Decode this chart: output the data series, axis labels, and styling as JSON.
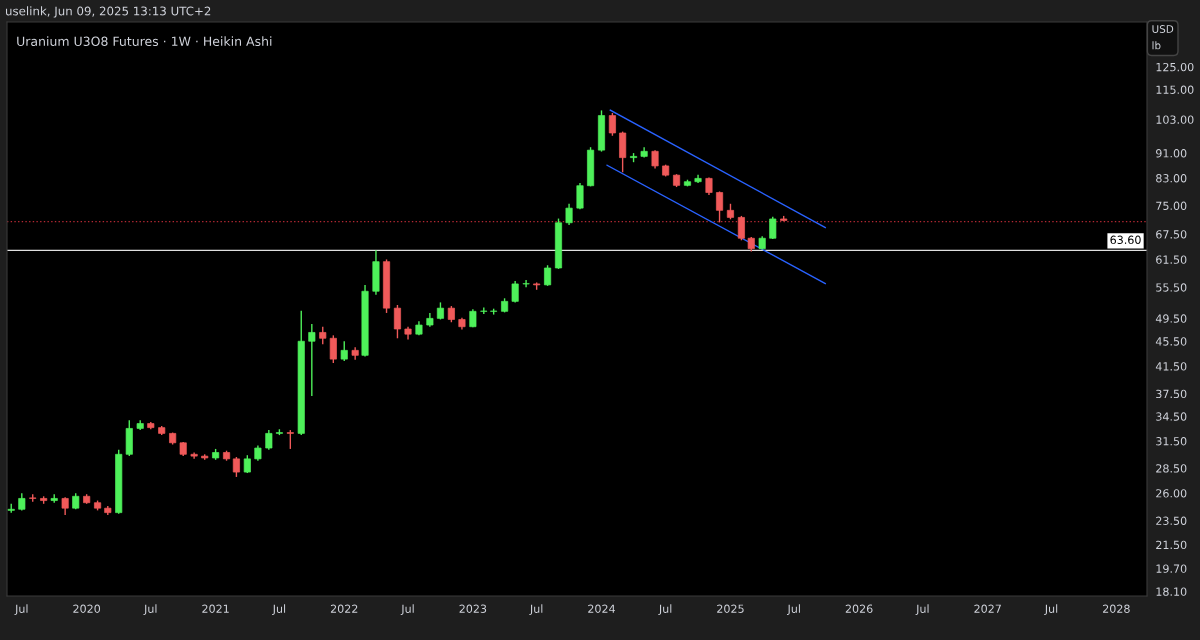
{
  "chart_data": {
    "type": "candlestick",
    "title": "Uranium U3O8 Futures · 1W · Heikin Ashi",
    "ylabel": "USD\nlb",
    "annotations": [
      "uselink, Jun 09, 2025 13:13 UTC+2"
    ],
    "log": "y",
    "grid": false,
    "legend": false,
    "x": [
      "2019-06",
      "2019-07",
      "2019-08",
      "2019-09",
      "2019-10",
      "2019-11",
      "2019-12",
      "2020-01",
      "2020-02",
      "2020-03",
      "2020-04",
      "2020-05",
      "2020-06",
      "2020-07",
      "2020-08",
      "2020-09",
      "2020-10",
      "2020-11",
      "2020-12",
      "2021-01",
      "2021-02",
      "2021-03",
      "2021-04",
      "2021-05",
      "2021-06",
      "2021-07",
      "2021-08",
      "2021-09",
      "2021-10",
      "2021-11",
      "2021-12",
      "2022-01",
      "2022-02",
      "2022-03",
      "2022-04",
      "2022-05",
      "2022-06",
      "2022-07",
      "2022-08",
      "2022-09",
      "2022-10",
      "2022-11",
      "2022-12",
      "2023-01",
      "2023-02",
      "2023-03",
      "2023-04",
      "2023-05",
      "2023-06",
      "2023-07",
      "2023-08",
      "2023-09",
      "2023-10",
      "2023-11",
      "2023-12",
      "2024-01",
      "2024-02",
      "2024-03",
      "2024-04",
      "2024-05",
      "2024-06",
      "2024-07",
      "2024-08",
      "2024-09",
      "2024-10",
      "2024-11",
      "2024-12",
      "2025-01",
      "2025-02",
      "2025-03",
      "2025-04",
      "2025-05",
      "2025-06"
    ],
    "ohlc": [
      [
        24.4,
        25.0,
        24.2,
        24.5
      ],
      [
        24.5,
        26.0,
        24.4,
        25.5
      ],
      [
        25.5,
        25.9,
        25.2,
        25.5
      ],
      [
        25.5,
        25.7,
        25.0,
        25.3
      ],
      [
        25.3,
        25.9,
        25.1,
        25.5
      ],
      [
        25.5,
        25.6,
        24.0,
        24.6
      ],
      [
        24.6,
        26.0,
        24.5,
        25.7
      ],
      [
        25.7,
        25.9,
        25.0,
        25.1
      ],
      [
        25.1,
        25.3,
        24.4,
        24.6
      ],
      [
        24.6,
        24.8,
        24.0,
        24.2
      ],
      [
        24.2,
        30.5,
        24.1,
        30.0
      ],
      [
        30.0,
        34.0,
        29.8,
        33.0
      ],
      [
        33.0,
        34.0,
        32.8,
        33.6
      ],
      [
        33.6,
        33.8,
        32.9,
        33.1
      ],
      [
        33.1,
        33.3,
        32.2,
        32.4
      ],
      [
        32.4,
        32.5,
        31.1,
        31.3
      ],
      [
        31.3,
        31.4,
        29.8,
        30.0
      ],
      [
        30.0,
        30.2,
        29.5,
        29.8
      ],
      [
        29.8,
        30.0,
        29.4,
        29.6
      ],
      [
        29.6,
        30.6,
        29.4,
        30.2
      ],
      [
        30.2,
        30.4,
        29.3,
        29.5
      ],
      [
        29.5,
        29.7,
        27.6,
        28.1
      ],
      [
        28.1,
        29.9,
        28.0,
        29.5
      ],
      [
        29.5,
        31.0,
        29.3,
        30.7
      ],
      [
        30.7,
        32.8,
        30.5,
        32.4
      ],
      [
        32.4,
        32.9,
        32.2,
        32.5
      ],
      [
        32.5,
        32.8,
        30.6,
        32.4
      ],
      [
        32.4,
        50.9,
        32.2,
        45.5
      ],
      [
        45.5,
        48.5,
        37.2,
        47.0
      ],
      [
        47.0,
        48.0,
        45.0,
        46.0
      ],
      [
        46.0,
        46.5,
        42.0,
        42.6
      ],
      [
        42.6,
        45.5,
        42.3,
        44.0
      ],
      [
        44.0,
        44.5,
        42.5,
        43.2
      ],
      [
        43.2,
        56.0,
        43.0,
        54.7
      ],
      [
        54.7,
        63.6,
        54.0,
        61.0
      ],
      [
        61.0,
        61.5,
        50.5,
        51.4
      ],
      [
        51.4,
        52.0,
        46.0,
        47.6
      ],
      [
        47.6,
        48.0,
        45.8,
        46.7
      ],
      [
        46.7,
        49.0,
        46.5,
        48.3
      ],
      [
        48.3,
        50.5,
        48.0,
        49.5
      ],
      [
        49.5,
        52.5,
        49.3,
        51.4
      ],
      [
        51.4,
        51.8,
        48.8,
        49.3
      ],
      [
        49.3,
        49.6,
        47.5,
        48.0
      ],
      [
        48.0,
        51.2,
        47.9,
        50.8
      ],
      [
        50.8,
        51.5,
        50.3,
        50.8
      ],
      [
        50.8,
        51.3,
        50.2,
        50.8
      ],
      [
        50.8,
        53.3,
        50.6,
        52.7
      ],
      [
        52.7,
        56.8,
        52.5,
        56.2
      ],
      [
        56.2,
        57.0,
        55.5,
        56.2
      ],
      [
        56.2,
        56.5,
        55.0,
        56.0
      ],
      [
        56.0,
        60.2,
        55.8,
        59.6
      ],
      [
        59.6,
        71.5,
        59.4,
        70.4
      ],
      [
        70.4,
        75.5,
        69.8,
        74.3
      ],
      [
        74.3,
        81.5,
        74.0,
        80.7
      ],
      [
        80.7,
        93.0,
        80.5,
        92.0
      ],
      [
        92.0,
        106.5,
        91.5,
        104.5
      ],
      [
        104.5,
        105.5,
        97.0,
        98.0
      ],
      [
        98.0,
        98.5,
        84.8,
        89.5
      ],
      [
        89.5,
        91.0,
        88.0,
        89.9
      ],
      [
        89.9,
        93.0,
        89.5,
        91.6
      ],
      [
        91.6,
        92.0,
        86.0,
        86.8
      ],
      [
        86.8,
        87.2,
        83.5,
        83.9
      ],
      [
        83.9,
        84.2,
        80.3,
        80.8
      ],
      [
        80.8,
        82.5,
        80.5,
        81.9
      ],
      [
        81.9,
        84.0,
        81.5,
        82.9
      ],
      [
        82.9,
        83.2,
        78.0,
        78.7
      ],
      [
        78.7,
        79.0,
        70.5,
        73.7
      ],
      [
        73.7,
        75.5,
        71.3,
        71.8
      ],
      [
        71.8,
        72.2,
        66.0,
        66.5
      ],
      [
        66.5,
        66.8,
        63.3,
        64.0
      ],
      [
        64.0,
        67.0,
        63.8,
        66.5
      ],
      [
        66.5,
        72.0,
        66.3,
        71.4
      ],
      [
        71.4,
        72.2,
        70.8,
        71.0
      ]
    ],
    "colors": [
      "#4ef05a",
      "#4ef05a",
      "#f05a5a",
      "#f05a5a",
      "#4ef05a",
      "#f05a5a",
      "#4ef05a",
      "#f05a5a",
      "#f05a5a",
      "#f05a5a",
      "#4ef05a",
      "#4ef05a",
      "#4ef05a",
      "#f05a5a",
      "#f05a5a",
      "#f05a5a",
      "#f05a5a",
      "#f05a5a",
      "#f05a5a",
      "#4ef05a",
      "#f05a5a",
      "#f05a5a",
      "#4ef05a",
      "#4ef05a",
      "#4ef05a",
      "#4ef05a",
      "#f05a5a",
      "#4ef05a",
      "#4ef05a",
      "#f05a5a",
      "#f05a5a",
      "#4ef05a",
      "#f05a5a",
      "#4ef05a",
      "#4ef05a",
      "#f05a5a",
      "#f05a5a",
      "#f05a5a",
      "#4ef05a",
      "#4ef05a",
      "#4ef05a",
      "#f05a5a",
      "#f05a5a",
      "#4ef05a",
      "#4ef05a",
      "#4ef05a",
      "#4ef05a",
      "#4ef05a",
      "#4ef05a",
      "#f05a5a",
      "#4ef05a",
      "#4ef05a",
      "#4ef05a",
      "#4ef05a",
      "#4ef05a",
      "#4ef05a",
      "#f05a5a",
      "#f05a5a",
      "#4ef05a",
      "#4ef05a",
      "#f05a5a",
      "#f05a5a",
      "#f05a5a",
      "#4ef05a",
      "#4ef05a",
      "#f05a5a",
      "#f05a5a",
      "#f05a5a",
      "#f05a5a",
      "#f05a5a",
      "#4ef05a",
      "#4ef05a",
      "#f05a5a"
    ],
    "series": [
      {
        "type": "line",
        "color": "#2962ff",
        "x": [
          "2024-01-26",
          "2025-09-27"
        ],
        "values": [
          106.6,
          69.2
        ]
      },
      {
        "type": "line",
        "color": "#2962ff",
        "x": [
          "2024-01-17",
          "2025-09-27"
        ],
        "values": [
          87.0,
          56.3
        ]
      }
    ],
    "ref_lines": [
      {
        "axis": "y",
        "value": 63.6,
        "label": "63.60",
        "color": "#e0e0e0",
        "line_style": "solid"
      },
      {
        "axis": "y",
        "value": 70.7,
        "label": null,
        "color": "#b22833",
        "line_style": "dotted"
      }
    ],
    "xlim": [
      "2019-05-20",
      "2028-03-28"
    ],
    "xticks": [
      {
        "value": "2019-07-01",
        "label": "Jul"
      },
      {
        "value": "2020-01-01",
        "label": "2020"
      },
      {
        "value": "2020-07-01",
        "label": "Jul"
      },
      {
        "value": "2021-01-01",
        "label": "2021"
      },
      {
        "value": "2021-07-01",
        "label": "Jul"
      },
      {
        "value": "2022-01-01",
        "label": "2022"
      },
      {
        "value": "2022-07-01",
        "label": "Jul"
      },
      {
        "value": "2023-01-01",
        "label": "2023"
      },
      {
        "value": "2023-07-01",
        "label": "Jul"
      },
      {
        "value": "2024-01-01",
        "label": "2024"
      },
      {
        "value": "2024-07-01",
        "label": "Jul"
      },
      {
        "value": "2025-01-01",
        "label": "2025"
      },
      {
        "value": "2025-07-01",
        "label": "Jul"
      },
      {
        "value": "2026-01-01",
        "label": "2026"
      },
      {
        "value": "2026-07-01",
        "label": "Jul"
      },
      {
        "value": "2027-01-01",
        "label": "2027"
      },
      {
        "value": "2027-07-01",
        "label": "Jul"
      },
      {
        "value": "2028-01-01",
        "label": "2028"
      }
    ],
    "ylim": [
      17.8,
      147.5
    ],
    "yticks": [
      {
        "value": 18.1,
        "label": "18.10"
      },
      {
        "value": 19.7,
        "label": "19.70"
      },
      {
        "value": 21.5,
        "label": "21.50"
      },
      {
        "value": 23.5,
        "label": "23.50"
      },
      {
        "value": 26,
        "label": "26.00"
      },
      {
        "value": 28.5,
        "label": "28.50"
      },
      {
        "value": 31.5,
        "label": "31.50"
      },
      {
        "value": 34.5,
        "label": "34.50"
      },
      {
        "value": 37.5,
        "label": "37.50"
      },
      {
        "value": 41.5,
        "label": "41.50"
      },
      {
        "value": 45.5,
        "label": "45.50"
      },
      {
        "value": 49.5,
        "label": "49.50"
      },
      {
        "value": 55.5,
        "label": "55.50"
      },
      {
        "value": 61.5,
        "label": "61.50"
      },
      {
        "value": 67.5,
        "label": "67.50"
      },
      {
        "value": 75,
        "label": "75.00"
      },
      {
        "value": 83,
        "label": "83.00"
      },
      {
        "value": 91,
        "label": "91.00"
      },
      {
        "value": 103,
        "label": "103.00"
      },
      {
        "value": 115,
        "label": "115.00"
      },
      {
        "value": 125,
        "label": "125.00"
      }
    ]
  }
}
